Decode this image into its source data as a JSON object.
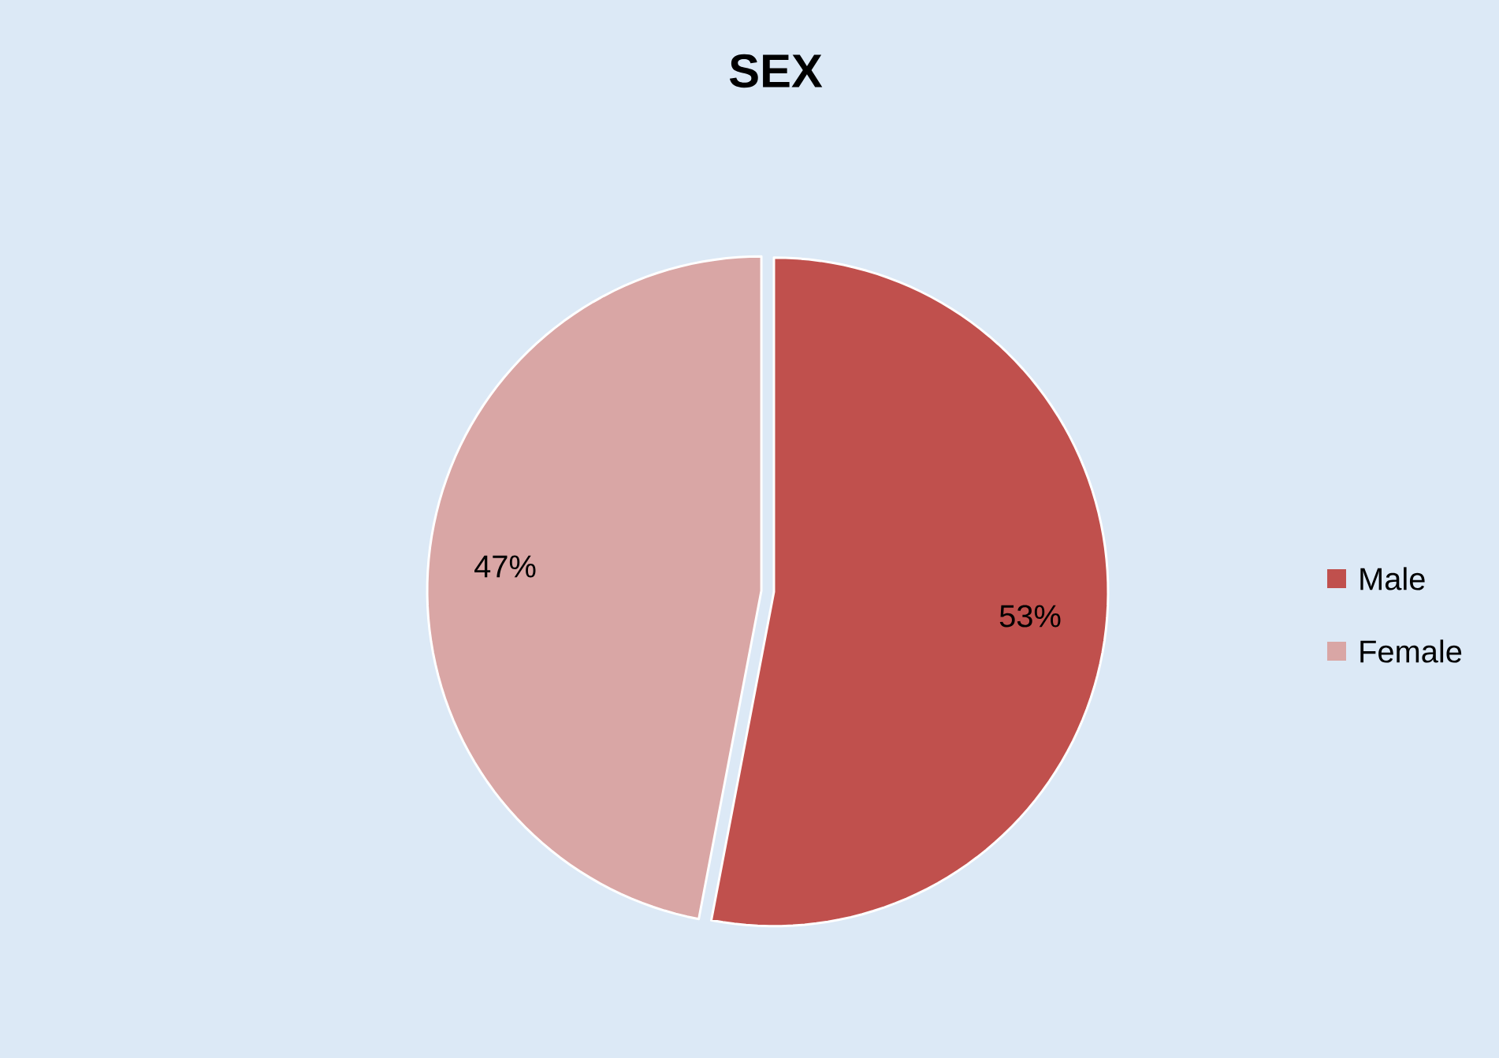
{
  "chart_data": {
    "type": "pie",
    "title": "SEX",
    "categories": [
      "Male",
      "Female"
    ],
    "values": [
      53,
      47
    ],
    "colors": [
      "#c0504d",
      "#d9a6a5"
    ],
    "value_labels": [
      "53%",
      "47%"
    ],
    "legend": "right"
  }
}
